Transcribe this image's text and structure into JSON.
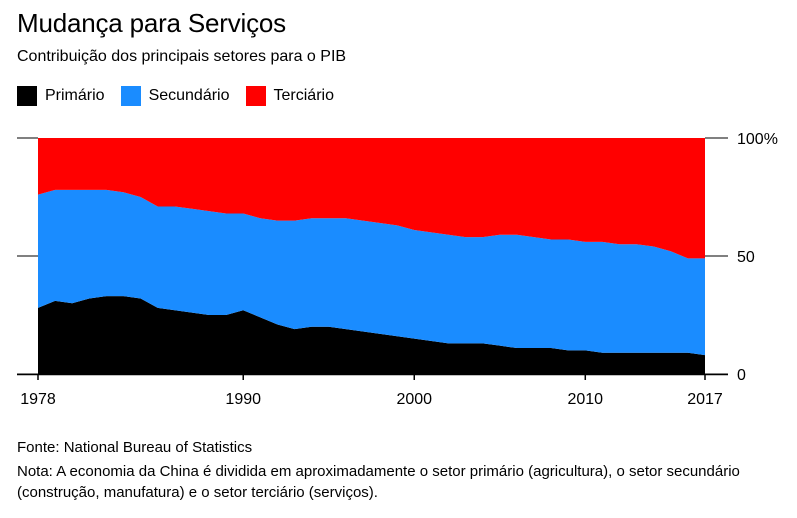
{
  "title": "Mudança para Serviços",
  "subtitle": "Contribuição dos principais setores para o PIB",
  "legend": [
    {
      "label": "Primário",
      "color": "#000000"
    },
    {
      "label": "Secundário",
      "color": "#1a8cff"
    },
    {
      "label": "Terciário",
      "color": "#ff0000"
    }
  ],
  "source": "Fonte: National Bureau of Statistics",
  "note": "Nota: A economia da China é dividida em aproximadamente o setor primário (agricultura), o setor secundário (construção, manufatura) e o setor terciário (serviços).",
  "chart_data": {
    "type": "area",
    "stacked": true,
    "x": [
      1978,
      1979,
      1980,
      1981,
      1982,
      1983,
      1984,
      1985,
      1986,
      1987,
      1988,
      1989,
      1990,
      1991,
      1992,
      1993,
      1994,
      1995,
      1996,
      1997,
      1998,
      1999,
      2000,
      2001,
      2002,
      2003,
      2004,
      2005,
      2006,
      2007,
      2008,
      2009,
      2010,
      2011,
      2012,
      2013,
      2014,
      2015,
      2016,
      2017
    ],
    "series": [
      {
        "name": "Primário",
        "color": "#000000",
        "values": [
          28,
          31,
          30,
          32,
          33,
          33,
          32,
          28,
          27,
          26,
          25,
          25,
          27,
          24,
          21,
          19,
          20,
          20,
          19,
          18,
          17,
          16,
          15,
          14,
          13,
          13,
          13,
          12,
          11,
          11,
          11,
          10,
          10,
          9,
          9,
          9,
          9,
          9,
          9,
          8
        ]
      },
      {
        "name": "Secundário",
        "color": "#1a8cff",
        "values": [
          48,
          47,
          48,
          46,
          45,
          44,
          43,
          43,
          44,
          44,
          44,
          43,
          41,
          42,
          44,
          46,
          46,
          46,
          47,
          47,
          47,
          47,
          46,
          46,
          46,
          45,
          45,
          47,
          48,
          47,
          46,
          47,
          46,
          47,
          46,
          46,
          45,
          43,
          40,
          41
        ]
      },
      {
        "name": "Terciário",
        "color": "#ff0000",
        "values": [
          24,
          22,
          22,
          22,
          22,
          23,
          25,
          29,
          29,
          30,
          31,
          32,
          32,
          34,
          35,
          35,
          34,
          34,
          34,
          35,
          36,
          37,
          39,
          40,
          41,
          42,
          42,
          41,
          41,
          42,
          43,
          43,
          44,
          44,
          45,
          45,
          46,
          48,
          51,
          51
        ]
      }
    ],
    "x_ticks": [
      "1978",
      "1990",
      "2000",
      "2010",
      "2017"
    ],
    "y_ticks": [
      "0",
      "50",
      "100%"
    ],
    "y_tick_values": [
      0,
      50,
      100
    ],
    "xlim": [
      1978,
      2017
    ],
    "ylim": [
      0,
      100
    ],
    "y_axis_side": "right",
    "grid": false
  }
}
